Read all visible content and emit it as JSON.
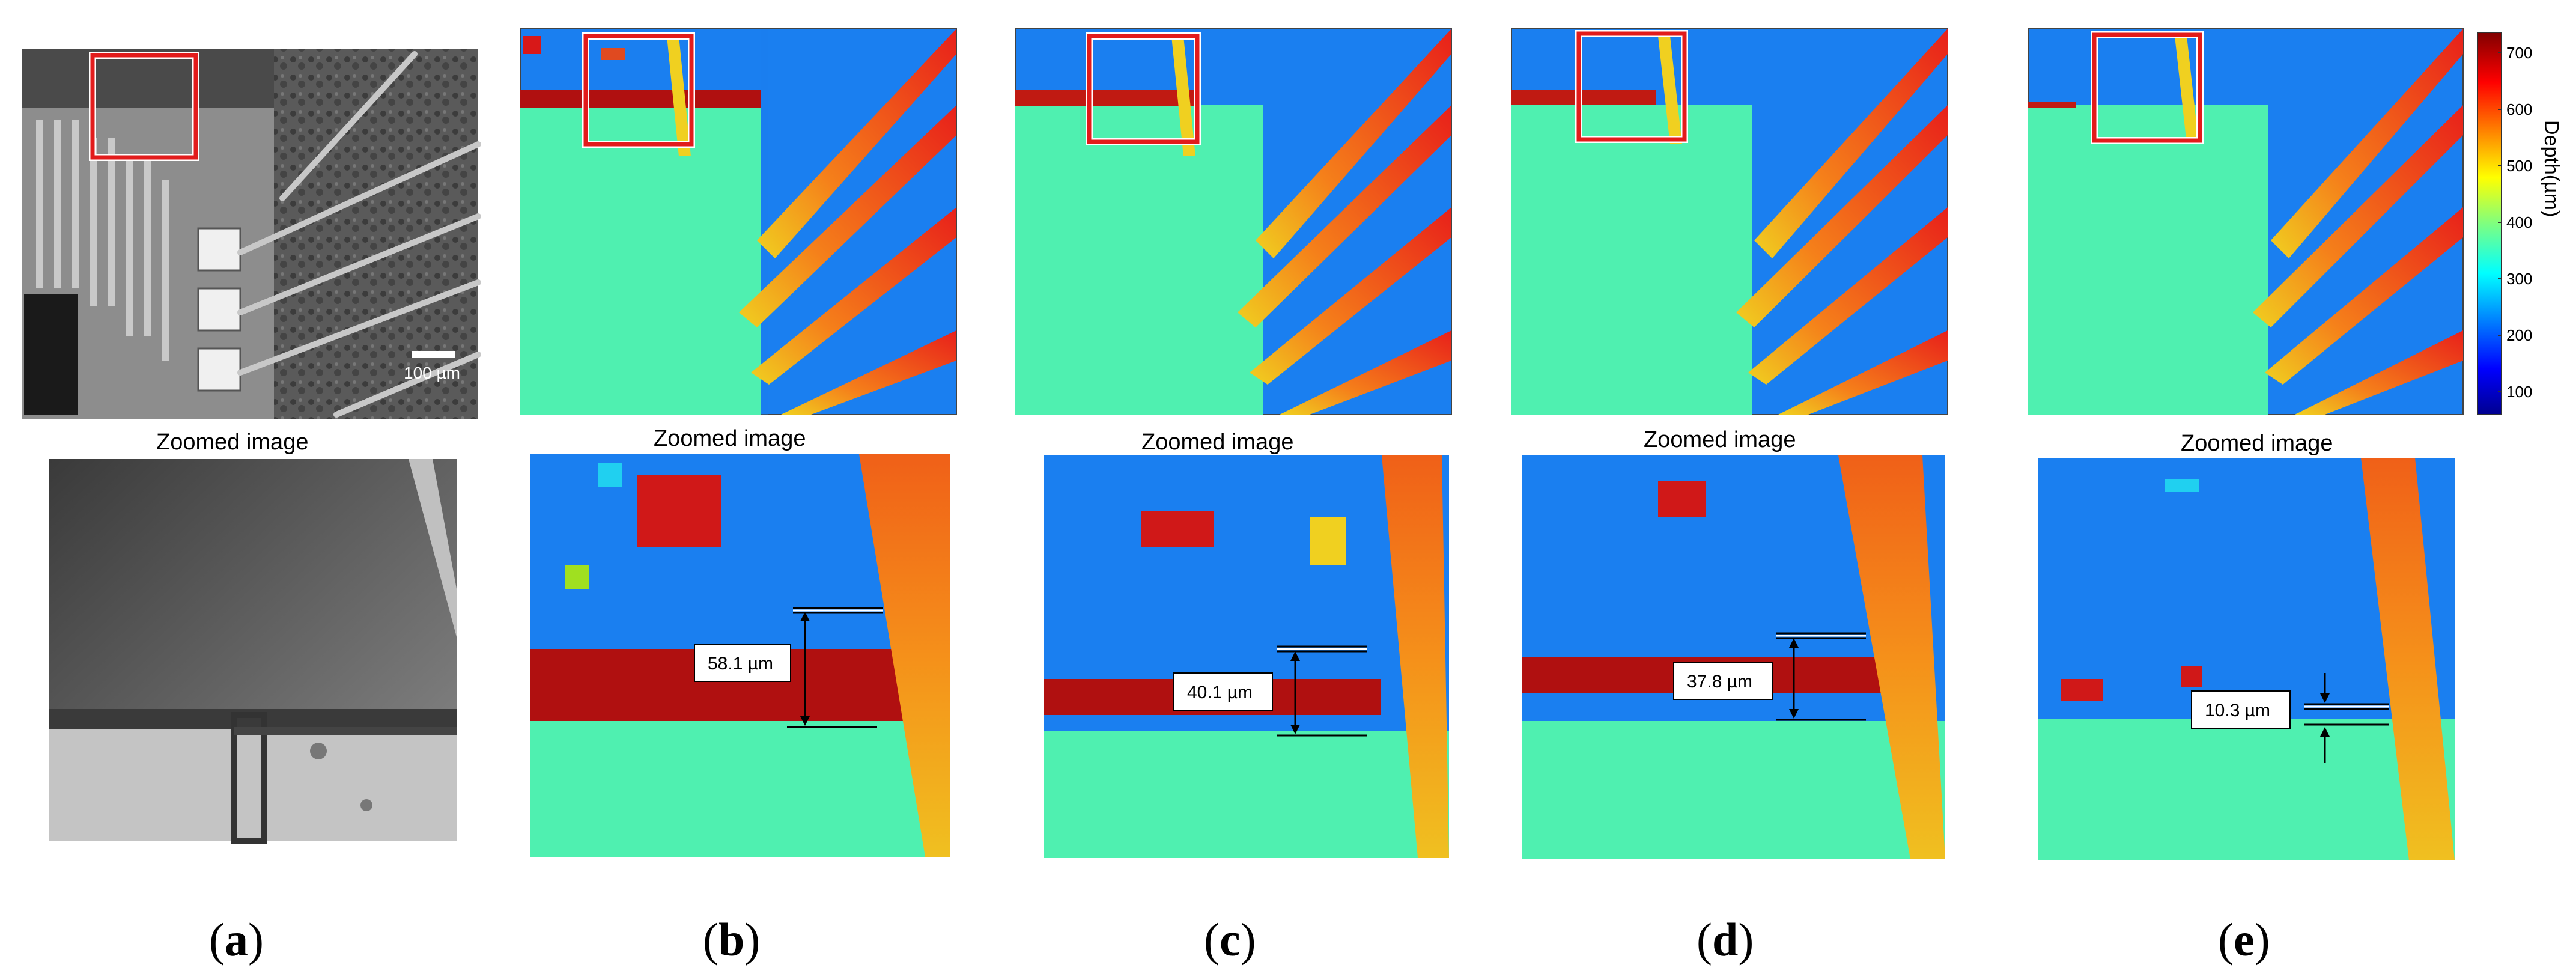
{
  "figure": {
    "zoomed_caption": "Zoomed image",
    "scale_bar_label": "100 µm",
    "panel_letters": [
      {
        "id": "a",
        "open": "(",
        "letter": "a",
        "close": ")"
      },
      {
        "id": "b",
        "open": "(",
        "letter": "b",
        "close": ")"
      },
      {
        "id": "c",
        "open": "(",
        "letter": "c",
        "close": ")"
      },
      {
        "id": "d",
        "open": "(",
        "letter": "d",
        "close": ")"
      },
      {
        "id": "e",
        "open": "(",
        "letter": "e",
        "close": ")"
      }
    ],
    "measurements": [
      {
        "panel": "b",
        "value": "58.1 µm"
      },
      {
        "panel": "c",
        "value": "40.1 µm"
      },
      {
        "panel": "d",
        "value": "37.8 µm"
      },
      {
        "panel": "e",
        "value": "10.3 µm"
      }
    ],
    "colorbar": {
      "title": "Depth(µm)",
      "ticks": [
        "700",
        "600",
        "500",
        "400",
        "300",
        "200",
        "100"
      ]
    },
    "colors": {
      "background_blue": "#1a7ff0",
      "plate_green": "#4ff0b0",
      "wire_red": "#e8201a",
      "wire_orange": "#f5801a",
      "wire_yellow": "#f0d020",
      "dark_red": "#b01010",
      "highlight_box": "#e21b1b"
    }
  }
}
